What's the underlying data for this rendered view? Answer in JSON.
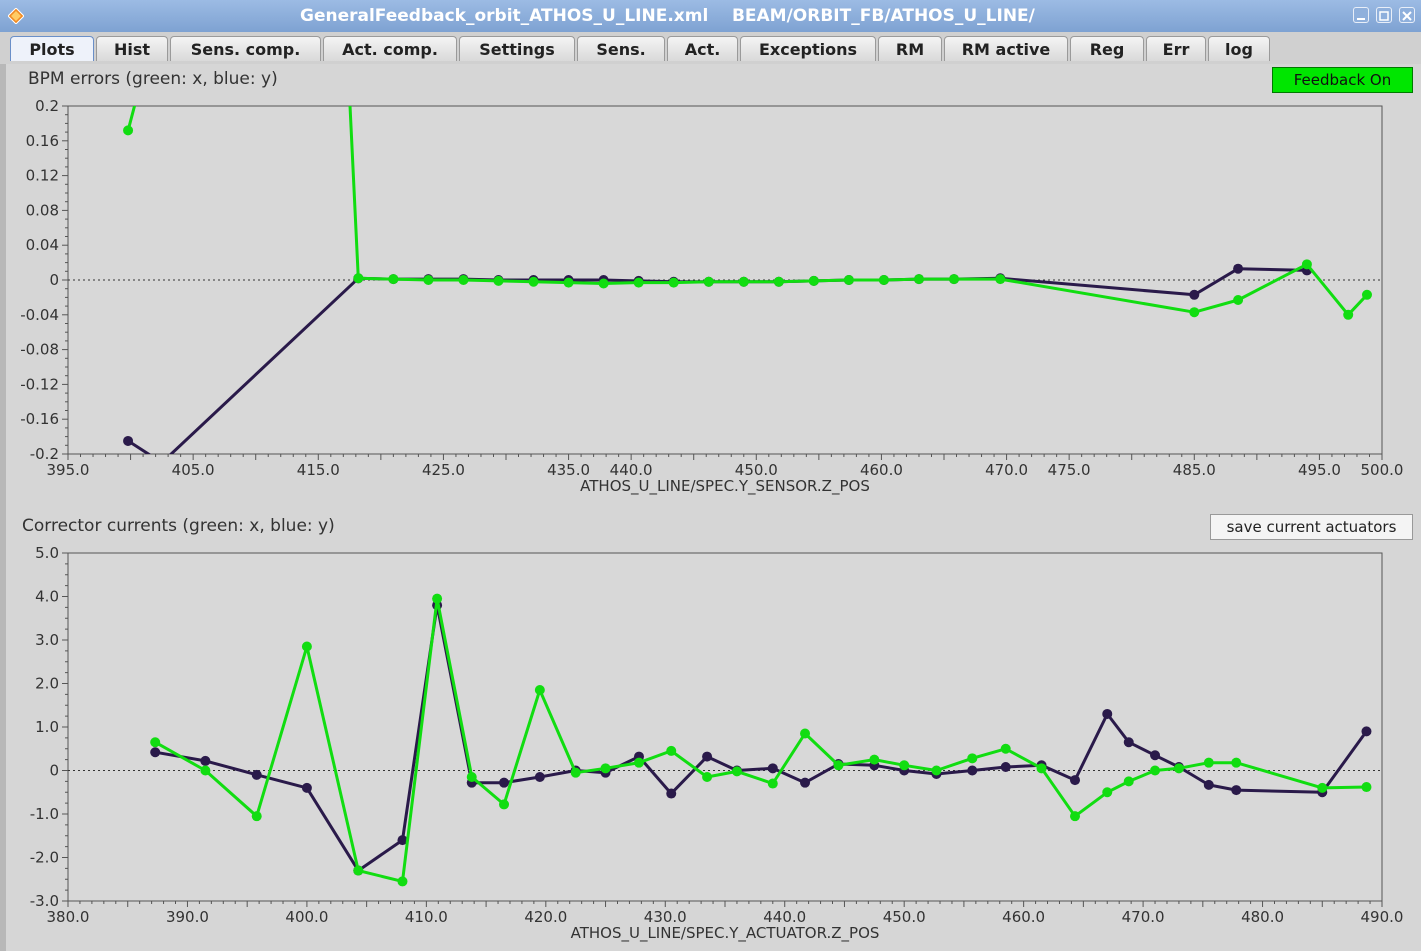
{
  "window": {
    "title": "GeneralFeedback_orbit_ATHOS_U_LINE.xml    BEAM/ORBIT_FB/ATHOS_U_LINE/",
    "accent": "#7ea2d2"
  },
  "tabs": [
    {
      "label": "Plots",
      "active": true
    },
    {
      "label": "Hist"
    },
    {
      "label": "Sens. comp."
    },
    {
      "label": "Act. comp."
    },
    {
      "label": "Settings"
    },
    {
      "label": "Sens."
    },
    {
      "label": "Act."
    },
    {
      "label": "Exceptions"
    },
    {
      "label": "RM"
    },
    {
      "label": "RM active"
    },
    {
      "label": "Reg"
    },
    {
      "label": "Err"
    },
    {
      "label": "log"
    }
  ],
  "panels": {
    "bpm": {
      "title": "BPM errors (green: x, blue: y)",
      "feedback_button": "Feedback On",
      "feedback_color": "#00e600"
    },
    "corr": {
      "title": "Corrector currents (green: x, blue: y)",
      "save_button": "save current actuators"
    }
  },
  "chart_data": [
    {
      "type": "line",
      "xlabel": "ATHOS_U_LINE/SPEC.Y_SENSOR.Z_POS",
      "xlim": [
        395,
        500
      ],
      "ylim": [
        -0.2,
        0.2
      ],
      "xticks": [
        395.0,
        405.0,
        415.0,
        425.0,
        435.0,
        440.0,
        450.0,
        460.0,
        470.0,
        475.0,
        485.0,
        495.0,
        500.0
      ],
      "xtick_labels": [
        "395.0",
        "405.0",
        "415.0",
        "425.0",
        "435.0",
        "440.0",
        "450.0",
        "460.0",
        "470.0",
        "475.0",
        "485.0",
        "495.0",
        "500.0"
      ],
      "yticks": [
        0.2,
        0.16,
        0.12,
        0.08,
        0.04,
        0,
        -0.04,
        -0.08,
        -0.12,
        -0.16,
        -0.2
      ],
      "ytick_labels": [
        "0.2",
        "0.16",
        "0.12",
        "0.08",
        "0.04",
        "0",
        "-0.04",
        "-0.08",
        "-0.12",
        "-0.16",
        "-0.2"
      ],
      "series": [
        {
          "color": "#2a1a4a",
          "x": [
            399.8,
            402.5,
            418.2,
            421.0,
            423.8,
            426.6,
            429.4,
            432.2,
            435.0,
            437.8,
            440.6,
            443.4,
            446.2,
            449.0,
            451.8,
            454.6,
            457.4,
            460.2,
            463.0,
            465.8,
            469.5,
            485.0,
            488.5,
            494.0
          ],
          "y": [
            -0.185,
            -0.21,
            0.002,
            0.001,
            0.001,
            0.001,
            0.0,
            0.0,
            0.0,
            0.0,
            -0.001,
            -0.002,
            -0.002,
            -0.002,
            -0.002,
            -0.001,
            0.0,
            0.0,
            0.001,
            0.001,
            0.002,
            -0.017,
            0.013,
            0.011
          ]
        },
        {
          "color": "#11dd11",
          "x": [
            399.8,
            400.5,
            417.5,
            418.2,
            421.0,
            423.8,
            426.6,
            429.4,
            432.2,
            435.0,
            437.8,
            440.6,
            443.4,
            446.2,
            449.0,
            451.8,
            454.6,
            457.4,
            460.2,
            463.0,
            465.8,
            469.5,
            485.0,
            488.5,
            494.0,
            497.3,
            498.8
          ],
          "y": [
            0.172,
            0.21,
            0.21,
            0.002,
            0.001,
            0.0,
            0.0,
            -0.001,
            -0.002,
            -0.003,
            -0.004,
            -0.003,
            -0.003,
            -0.002,
            -0.002,
            -0.002,
            -0.001,
            0.0,
            0.0,
            0.001,
            0.001,
            0.001,
            -0.037,
            -0.023,
            0.018,
            -0.04,
            -0.017
          ]
        }
      ]
    },
    {
      "type": "line",
      "xlabel": "ATHOS_U_LINE/SPEC.Y_ACTUATOR.Z_POS",
      "xlim": [
        380,
        490
      ],
      "ylim": [
        -3.0,
        5.0
      ],
      "xticks": [
        380.0,
        390.0,
        400.0,
        410.0,
        420.0,
        430.0,
        440.0,
        450.0,
        460.0,
        470.0,
        480.0,
        490.0
      ],
      "xtick_labels": [
        "380.0",
        "390.0",
        "400.0",
        "410.0",
        "420.0",
        "430.0",
        "440.0",
        "450.0",
        "460.0",
        "470.0",
        "480.0",
        "490.0"
      ],
      "yticks": [
        5.0,
        4.0,
        3.0,
        2.0,
        1.0,
        0,
        -1.0,
        -2.0,
        -3.0
      ],
      "ytick_labels": [
        "5.0",
        "4.0",
        "3.0",
        "2.0",
        "1.0",
        "0",
        "-1.0",
        "-2.0",
        "-3.0"
      ],
      "series": [
        {
          "color": "#2a1a4a",
          "x": [
            387.3,
            391.5,
            395.8,
            400.0,
            404.3,
            408.0,
            410.9,
            413.8,
            416.5,
            419.5,
            422.5,
            425.0,
            427.8,
            430.5,
            433.5,
            436.0,
            439.0,
            441.7,
            444.5,
            447.5,
            450.0,
            452.7,
            455.7,
            458.5,
            461.5,
            464.3,
            467.0,
            468.8,
            471.0,
            473.0,
            475.5,
            477.8,
            485.0,
            488.7
          ],
          "y": [
            0.42,
            0.22,
            -0.1,
            -0.4,
            -2.3,
            -1.6,
            3.8,
            -0.28,
            -0.28,
            -0.15,
            0.0,
            -0.05,
            0.32,
            -0.53,
            0.32,
            0.0,
            0.05,
            -0.28,
            0.15,
            0.12,
            0.0,
            -0.08,
            0.0,
            0.08,
            0.12,
            -0.22,
            1.3,
            0.65,
            0.35,
            0.08,
            -0.33,
            -0.45,
            -0.5,
            0.9
          ]
        },
        {
          "color": "#11dd11",
          "x": [
            387.3,
            391.5,
            395.8,
            400.0,
            404.3,
            408.0,
            410.9,
            413.8,
            416.5,
            419.5,
            422.5,
            425.0,
            427.8,
            430.5,
            433.5,
            436.0,
            439.0,
            441.7,
            444.5,
            447.5,
            450.0,
            452.7,
            455.7,
            458.5,
            461.5,
            464.3,
            467.0,
            468.8,
            471.0,
            473.0,
            475.5,
            477.8,
            485.0,
            488.7
          ],
          "y": [
            0.65,
            0.0,
            -1.05,
            2.85,
            -2.3,
            -2.55,
            3.95,
            -0.15,
            -0.78,
            1.85,
            -0.05,
            0.05,
            0.18,
            0.45,
            -0.15,
            -0.02,
            -0.3,
            0.85,
            0.12,
            0.25,
            0.12,
            0.0,
            0.28,
            0.5,
            0.05,
            -1.05,
            -0.5,
            -0.25,
            0.0,
            0.05,
            0.18,
            0.18,
            -0.4,
            -0.38
          ]
        }
      ]
    }
  ]
}
